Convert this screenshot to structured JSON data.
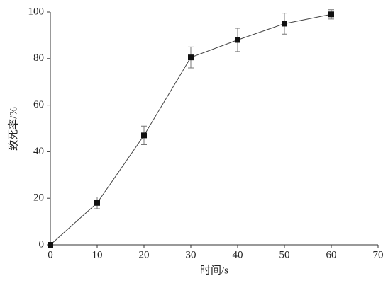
{
  "chart_data": {
    "type": "line",
    "x_label": "时间/s",
    "y_label": "致死率/%",
    "x": [
      0,
      10,
      20,
      30,
      40,
      50,
      60
    ],
    "series": [
      {
        "color": "#111111",
        "values": [
          0,
          18,
          47,
          80.5,
          88,
          95,
          99
        ],
        "errors": [
          0,
          2.5,
          4,
          4.5,
          5,
          4.5,
          2
        ]
      }
    ],
    "xlim": [
      0,
      70
    ],
    "xticks": [
      0,
      10,
      20,
      30,
      40,
      50,
      60,
      70
    ],
    "ylim": [
      0,
      100
    ],
    "yticks": [
      0,
      20,
      40,
      60,
      80,
      100
    ]
  }
}
